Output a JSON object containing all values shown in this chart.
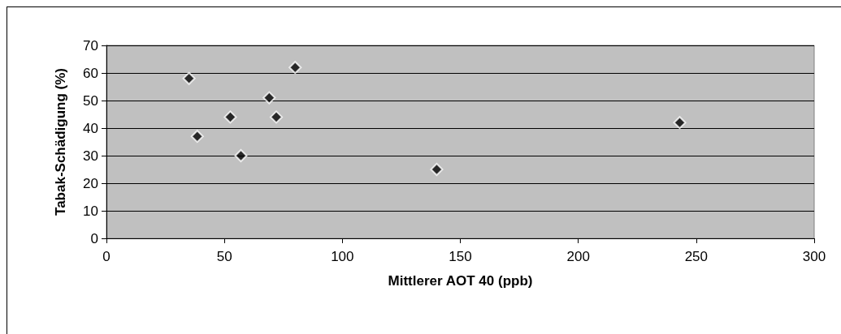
{
  "chart_data": {
    "type": "scatter",
    "xlabel": "Mittlerer AOT 40 (ppb)",
    "ylabel": "Tabak-Schädigung (%)",
    "x": [
      35,
      38.5,
      52.5,
      57,
      69,
      72,
      80,
      140,
      243
    ],
    "values": [
      58,
      37,
      44,
      30,
      51,
      44,
      62,
      25,
      42
    ],
    "color": "#000000",
    "marker": "diamond",
    "xlim": [
      0,
      300
    ],
    "xticks": [
      0,
      50,
      100,
      150,
      200,
      250,
      300
    ],
    "ylim": [
      0,
      70
    ],
    "yticks": [
      0,
      10,
      20,
      30,
      40,
      50,
      60,
      70
    ],
    "grid": "y"
  }
}
